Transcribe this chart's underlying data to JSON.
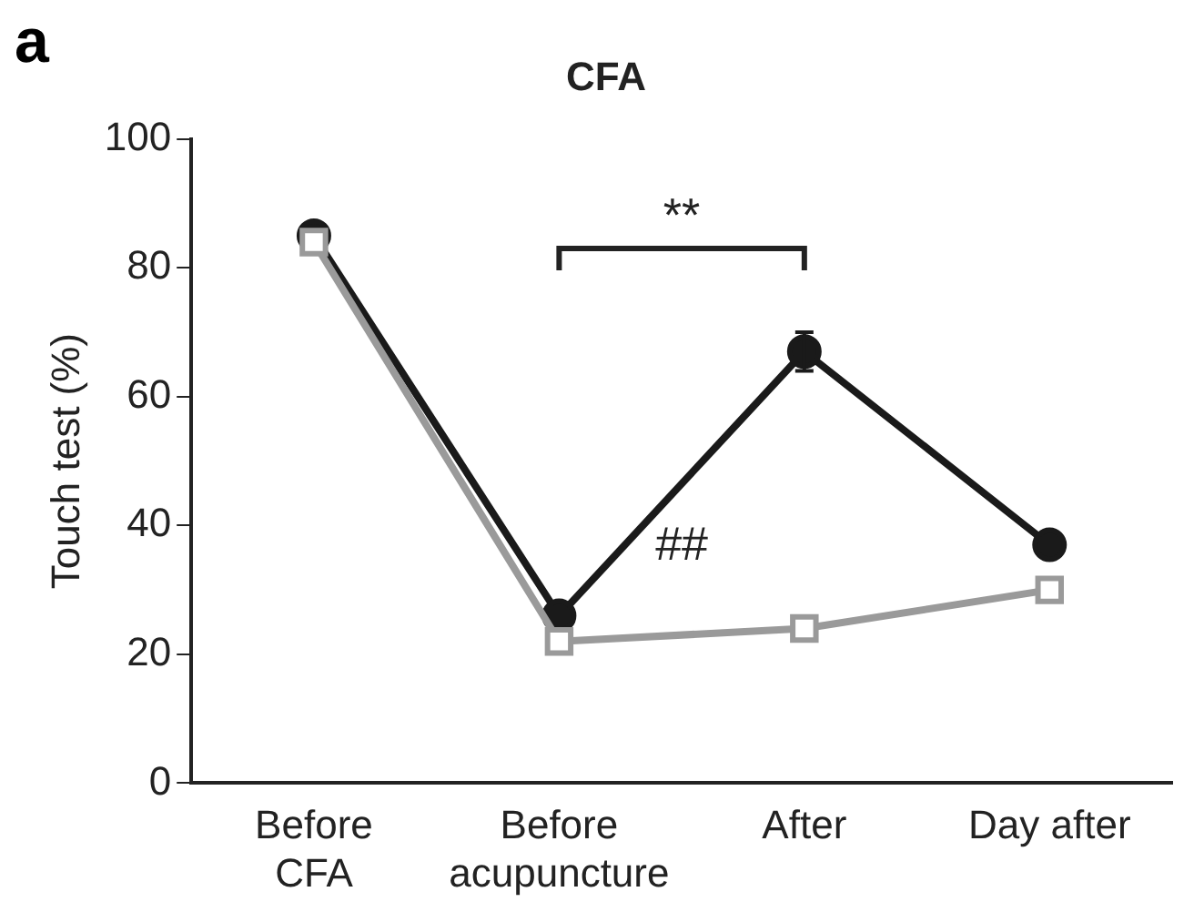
{
  "chart_data": {
    "type": "line",
    "title": "CFA",
    "ylabel": "Touch test (%)",
    "categories": [
      "Before\nCFA",
      "Before\nacupuncture",
      "After",
      "Day after"
    ],
    "series": [
      {
        "color": "#1a1a1a",
        "values": [
          85,
          26,
          67,
          37
        ],
        "errors": [
          null,
          null,
          3,
          null
        ],
        "marker": "circle"
      },
      {
        "color": "#9a9a9a",
        "values": [
          84,
          22,
          24,
          30
        ],
        "marker": "square"
      }
    ],
    "ylim": [
      0,
      100
    ],
    "yticks": [
      0,
      20,
      40,
      60,
      80,
      100
    ],
    "grid": false,
    "legend": false,
    "annotations": [
      "a",
      "**",
      "##"
    ]
  }
}
